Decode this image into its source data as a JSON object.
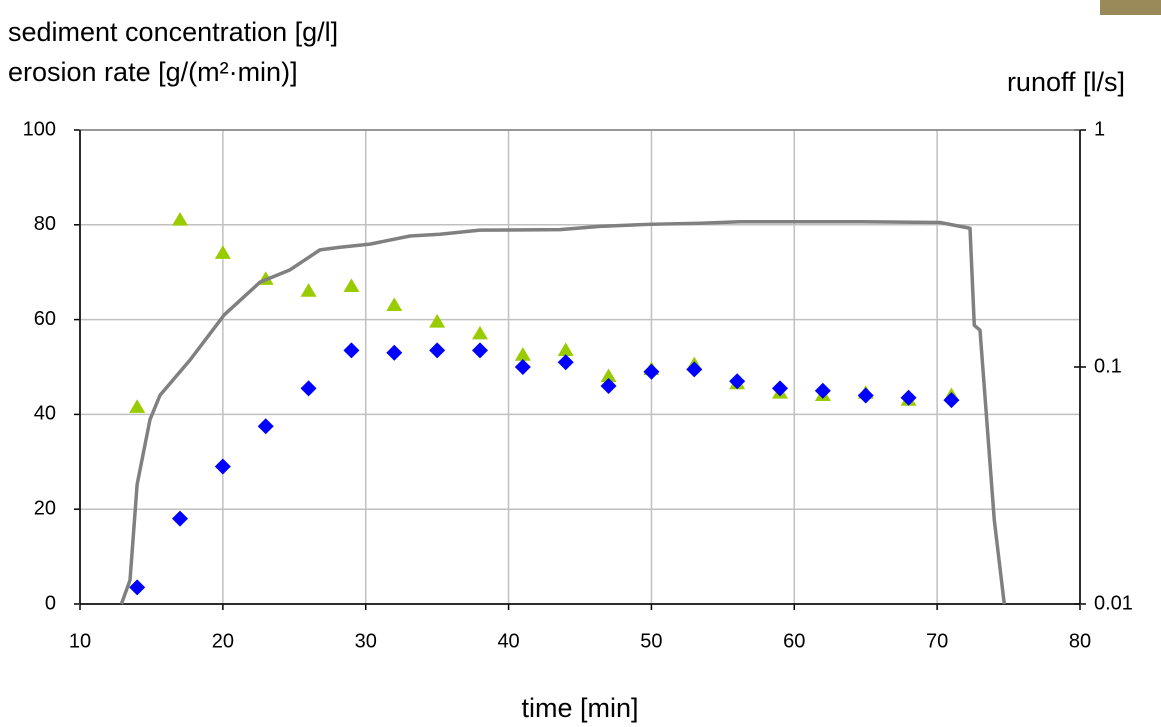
{
  "chart_data": {
    "type": "scatter",
    "y_label": [
      "sediment concentration [g/l]",
      "erosion rate [g/(m²·min)]"
    ],
    "y2_label": "runoff [l/s]",
    "x_label": "time [min]",
    "xlim": [
      10,
      80
    ],
    "xticks": [
      10,
      20,
      30,
      40,
      50,
      60,
      70,
      80
    ],
    "ylim": [
      0,
      100
    ],
    "yticks": [
      0,
      20,
      40,
      60,
      80,
      100
    ],
    "y2lim": [
      0.01,
      1
    ],
    "y2ticks": [
      0.01,
      0.1,
      1
    ],
    "y2_scale": "log",
    "grid": true,
    "series": [
      {
        "type": "scatter",
        "marker": "triangle",
        "color": "#99cc00",
        "x": [
          14,
          17,
          20,
          23,
          26,
          29,
          32,
          35,
          38,
          41,
          44,
          47,
          50,
          53,
          56,
          59,
          62,
          65,
          68,
          71
        ],
        "values": [
          41.5,
          81,
          74,
          68.5,
          66,
          67,
          63,
          59.5,
          57,
          52.5,
          53.5,
          48,
          49.5,
          50.5,
          46.5,
          44.5,
          44,
          44.5,
          43,
          44
        ]
      },
      {
        "type": "scatter",
        "marker": "diamond",
        "color": "#0000ff",
        "x": [
          14,
          17,
          20,
          23,
          26,
          29,
          32,
          35,
          38,
          41,
          44,
          47,
          50,
          53,
          56,
          59,
          62,
          65,
          68,
          71
        ],
        "values": [
          3.5,
          18,
          29,
          37.5,
          45.5,
          53.5,
          53,
          53.5,
          53.5,
          50,
          51,
          46,
          49,
          49.5,
          47,
          45.5,
          45,
          44,
          43.5,
          43
        ]
      },
      {
        "type": "line",
        "axis": "y2",
        "color": "#808080",
        "x": [
          12.9,
          13.5,
          14.0,
          14.9,
          15.6,
          17.7,
          20.1,
          22.6,
          24.7,
          26.8,
          28.2,
          30.3,
          33.1,
          35.2,
          38.0,
          43.6,
          46.4,
          49.9,
          53.4,
          56.2,
          64.6,
          70.2,
          72.3,
          72.6,
          73.0,
          74.0,
          74.7
        ],
        "values": [
          0.01,
          0.0126,
          0.032,
          0.06,
          0.076,
          0.107,
          0.166,
          0.228,
          0.257,
          0.312,
          0.32,
          0.33,
          0.357,
          0.363,
          0.378,
          0.38,
          0.392,
          0.4,
          0.404,
          0.41,
          0.41,
          0.407,
          0.385,
          0.15,
          0.143,
          0.0226,
          0.01
        ]
      }
    ]
  }
}
